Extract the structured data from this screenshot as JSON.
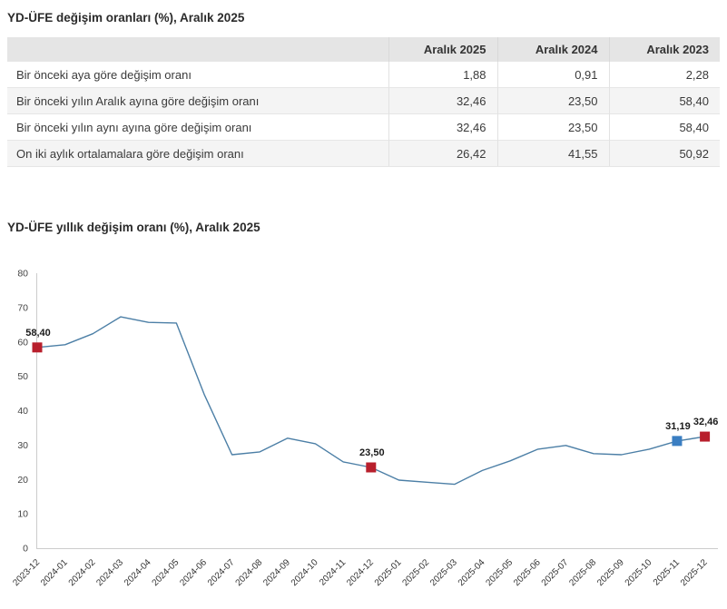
{
  "page": {
    "table_title": "YD-ÜFE değişim oranları (%), Aralık 2025",
    "chart_title": "YD-ÜFE yıllık değişim oranı (%), Aralık 2025"
  },
  "table": {
    "header": [
      "Aralık 2025",
      "Aralık 2024",
      "Aralık 2023"
    ],
    "rows": [
      {
        "label": "Bir önceki aya göre değişim oranı",
        "values": [
          "1,88",
          "0,91",
          "2,28"
        ]
      },
      {
        "label": "Bir önceki yılın Aralık ayına göre değişim oranı",
        "values": [
          "32,46",
          "23,50",
          "58,40"
        ]
      },
      {
        "label": "Bir önceki yılın aynı ayına göre değişim oranı",
        "values": [
          "32,46",
          "23,50",
          "58,40"
        ]
      },
      {
        "label": "On iki aylık ortalamalara göre değişim oranı",
        "values": [
          "26,42",
          "41,55",
          "50,92"
        ]
      }
    ]
  },
  "chart_data": {
    "type": "line",
    "title": "YD-ÜFE yıllık değişim oranı (%), Aralık 2025",
    "x": [
      "2023-12",
      "2024-01",
      "2024-02",
      "2024-03",
      "2024-04",
      "2024-05",
      "2024-06",
      "2024-07",
      "2024-08",
      "2024-09",
      "2024-10",
      "2024-11",
      "2024-12",
      "2025-01",
      "2025-02",
      "2025-03",
      "2025-04",
      "2025-05",
      "2025-06",
      "2025-07",
      "2025-08",
      "2025-09",
      "2025-10",
      "2025-11",
      "2025-12"
    ],
    "values": [
      58.4,
      59.2,
      62.4,
      67.3,
      65.7,
      65.5,
      44.8,
      27.2,
      28.0,
      32.0,
      30.4,
      25.1,
      23.5,
      19.8,
      19.2,
      18.6,
      22.6,
      25.4,
      28.8,
      29.9,
      27.5,
      27.2,
      28.8,
      31.19,
      32.46
    ],
    "xlabel": "",
    "ylabel": "",
    "ylim": [
      0,
      80
    ],
    "ytick_step": 10,
    "grid": false,
    "legend": "none",
    "line_color": "#4c7fa6",
    "axis_color": "#cccccc",
    "tick_label_color": "#444444",
    "highlights": [
      {
        "x": "2023-12",
        "index": 0,
        "value": 58.4,
        "label": "58,40",
        "color": "#b81f2c"
      },
      {
        "x": "2024-12",
        "index": 12,
        "value": 23.5,
        "label": "23,50",
        "color": "#b81f2c"
      },
      {
        "x": "2025-11",
        "index": 23,
        "value": 31.19,
        "label": "31,19",
        "color": "#3a7ec2"
      },
      {
        "x": "2025-12",
        "index": 24,
        "value": 32.46,
        "label": "32,46",
        "color": "#b81f2c"
      }
    ]
  }
}
